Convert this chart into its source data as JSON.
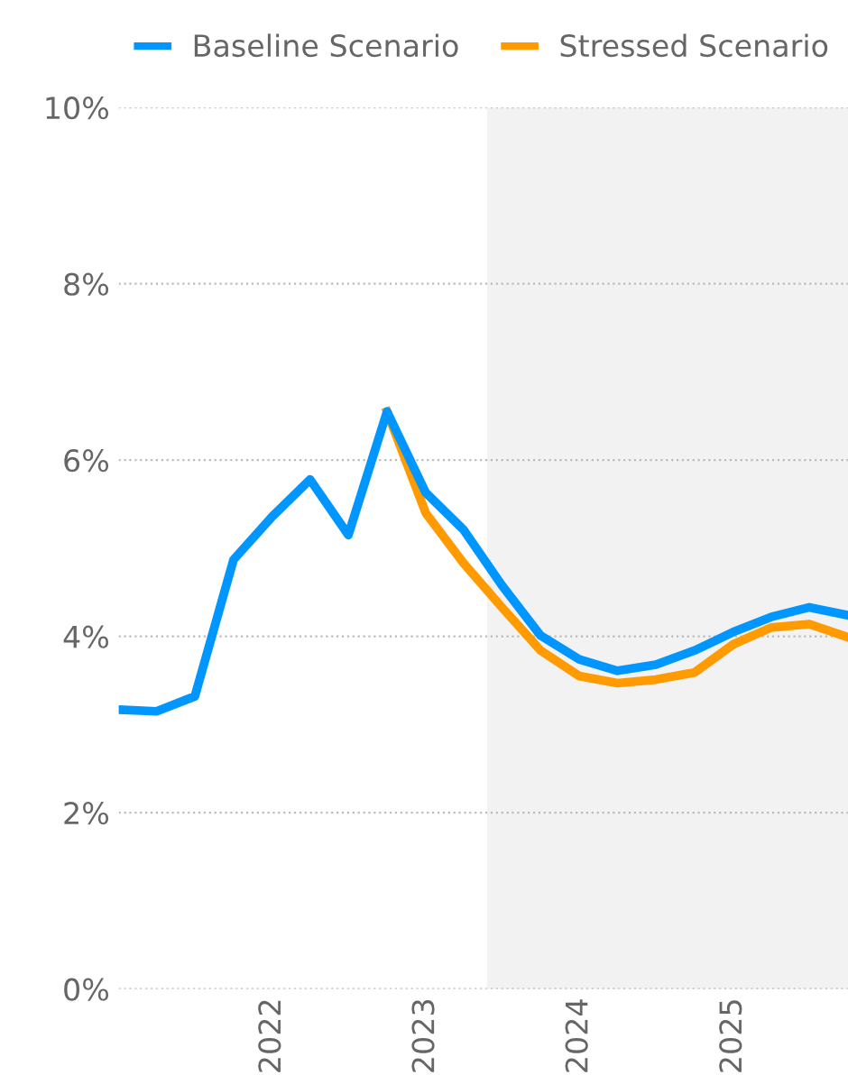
{
  "chart_data": {
    "type": "line",
    "x": [
      "2021-01",
      "2021-04",
      "2021-07",
      "2021-10",
      "2022-01",
      "2022-04",
      "2022-07",
      "2022-10",
      "2023-01",
      "2023-04",
      "2023-07",
      "2023-10",
      "2024-01",
      "2024-04",
      "2024-07",
      "2024-10",
      "2025-01",
      "2025-04",
      "2025-07",
      "2025-10"
    ],
    "series": [
      {
        "name": "Stressed Scenario",
        "color": "#ff9a00",
        "values": [
          null,
          null,
          null,
          null,
          null,
          null,
          null,
          6.55,
          5.4,
          4.83,
          4.33,
          3.84,
          3.55,
          3.47,
          3.51,
          3.59,
          3.91,
          4.1,
          4.14,
          3.99
        ]
      },
      {
        "name": "Baseline Scenario",
        "color": "#0096ff",
        "values": [
          3.17,
          3.15,
          3.32,
          4.87,
          5.36,
          5.78,
          5.15,
          6.55,
          5.63,
          5.21,
          4.58,
          4.01,
          3.74,
          3.61,
          3.68,
          3.84,
          4.05,
          4.22,
          4.33,
          4.24
        ]
      }
    ],
    "xlim": [
      "2021-01",
      "2025-10"
    ],
    "xticks": [
      "2022",
      "2023",
      "2024",
      "2025"
    ],
    "ylim": [
      0,
      10
    ],
    "yticks": [
      {
        "value": 0,
        "label": "0%"
      },
      {
        "value": 2,
        "label": "2%"
      },
      {
        "value": 4,
        "label": "4%"
      },
      {
        "value": 6,
        "label": "6%"
      },
      {
        "value": 8,
        "label": "8%"
      },
      {
        "value": 10,
        "label": "10%"
      }
    ],
    "bands": [
      {
        "axis": "x",
        "from": "2023-05-27",
        "to": "2025-10",
        "color": "#f2f2f2"
      }
    ],
    "grid": "y",
    "legend": "top",
    "line_style": "solid",
    "marker": "none"
  }
}
